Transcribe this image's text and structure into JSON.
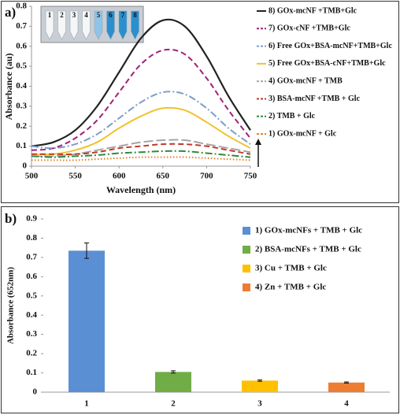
{
  "chart_data": [
    {
      "type": "line",
      "panel_label": "a)",
      "xlabel": "Wavelength (nm)",
      "ylabel": "Absorbance (au)",
      "inset_labels": [
        "1",
        "2",
        "3",
        "4",
        "5",
        "6",
        "7",
        "8"
      ],
      "x": [
        500,
        525,
        550,
        575,
        600,
        625,
        650,
        675,
        700,
        725,
        750
      ],
      "xlim": [
        500,
        750
      ],
      "xticks": [
        500,
        550,
        600,
        650,
        700,
        750
      ],
      "ylim": [
        0,
        0.8
      ],
      "yticks": [
        0,
        0.1,
        0.2,
        0.3,
        0.4,
        0.5,
        0.6,
        0.7,
        0.8
      ],
      "series": [
        {
          "name": "8) GOx-mcNF +TMB+Glc",
          "color": "#222222",
          "dash": "solid",
          "values": [
            0.1,
            0.12,
            0.18,
            0.3,
            0.47,
            0.64,
            0.73,
            0.7,
            0.55,
            0.35,
            0.18
          ]
        },
        {
          "name": "7) GOx-cNF +TMB+Glc",
          "color": "#a0207a",
          "dash": "dashed",
          "values": [
            0.08,
            0.09,
            0.14,
            0.23,
            0.37,
            0.51,
            0.58,
            0.56,
            0.44,
            0.28,
            0.14
          ]
        },
        {
          "name": "6) Free GOx+BSA-mcNF+TMB+Glc",
          "color": "#7f9dc8",
          "dash": "dashdot",
          "values": [
            0.1,
            0.09,
            0.11,
            0.16,
            0.24,
            0.32,
            0.37,
            0.36,
            0.29,
            0.19,
            0.11
          ]
        },
        {
          "name": "5) Free GOx+BSA-cNF+TMB+Glc",
          "color": "#f2c12e",
          "dash": "solid",
          "values": [
            0.06,
            0.06,
            0.08,
            0.12,
            0.19,
            0.25,
            0.29,
            0.28,
            0.22,
            0.15,
            0.09
          ]
        },
        {
          "name": "4) GOx-mcNF + TMB",
          "color": "#a6a6a6",
          "dash": "longdash",
          "values": [
            0.05,
            0.05,
            0.06,
            0.08,
            0.1,
            0.12,
            0.13,
            0.13,
            0.11,
            0.09,
            0.07
          ]
        },
        {
          "name": "3) BSA-mcNF +TMB + Glc",
          "color": "#c0392b",
          "dash": "dashed",
          "values": [
            0.06,
            0.06,
            0.06,
            0.07,
            0.09,
            0.1,
            0.11,
            0.11,
            0.1,
            0.08,
            0.06
          ]
        },
        {
          "name": "2) TMB + Glc",
          "color": "#2e8b3e",
          "dash": "dashdot",
          "values": [
            0.05,
            0.045,
            0.05,
            0.055,
            0.065,
            0.07,
            0.075,
            0.075,
            0.065,
            0.055,
            0.045
          ]
        },
        {
          "name": "1) GOx-mcNF + Glc",
          "color": "#e67e22",
          "dash": "dotted",
          "values": [
            0.03,
            0.03,
            0.03,
            0.035,
            0.04,
            0.045,
            0.045,
            0.045,
            0.04,
            0.035,
            0.03
          ]
        }
      ]
    },
    {
      "type": "bar",
      "panel_label": "b)",
      "ylabel": "Absorbance (652nm)",
      "categories": [
        "1",
        "2",
        "3",
        "4"
      ],
      "values": [
        0.735,
        0.105,
        0.06,
        0.05
      ],
      "errors": [
        0.04,
        0.006,
        0.004,
        0.003
      ],
      "colors": [
        "#5b8fd4",
        "#70ad47",
        "#ffc000",
        "#ed7d31"
      ],
      "legend": [
        "1) GOx-mcNFs + TMB + Glc",
        "2) BSA-mcNFs + TMB + Glc",
        "3) Cu + TMB + Glc",
        "4) Zn + TMB + Glc"
      ],
      "ylim": [
        0,
        0.9
      ],
      "yticks": [
        0,
        0.1,
        0.2,
        0.3,
        0.4,
        0.5,
        0.6,
        0.7,
        0.8,
        0.9
      ]
    }
  ]
}
